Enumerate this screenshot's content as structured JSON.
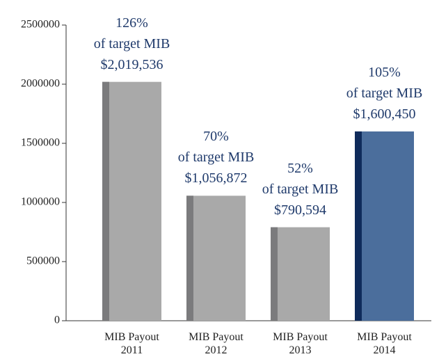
{
  "chart_data": {
    "type": "bar",
    "categories": [
      "MIB Payout\n2011",
      "MIB Payout\n2012",
      "MIB Payout\n2013",
      "MIB Payout\n2014"
    ],
    "values": [
      2019536,
      1056872,
      790594,
      1600450
    ],
    "value_labels": [
      "$2,019,536",
      "$1,056,872",
      "$790,594",
      "$1,600,450"
    ],
    "percent_labels": [
      "126%",
      "70%",
      "52%",
      "105%"
    ],
    "target_label": "of target MIB",
    "colors": [
      "#a9a9a9",
      "#a9a9a9",
      "#a9a9a9",
      "#4b6e9c"
    ],
    "strip_colors": [
      "#7b7b7d",
      "#7b7b7d",
      "#7b7b7d",
      "#0f2b5b"
    ],
    "ylim": [
      0,
      2500000
    ],
    "yticks": [
      0,
      500000,
      1000000,
      1500000,
      2000000,
      2500000
    ],
    "grid": false
  }
}
